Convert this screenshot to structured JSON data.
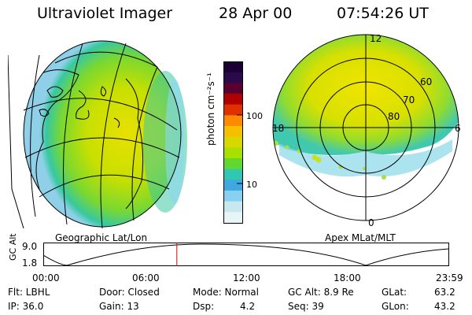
{
  "header": {
    "instrument": "Ultraviolet Imager",
    "date": "28 Apr 00",
    "time": "07:54:26 UT"
  },
  "left_panel": {
    "caption": "Geographic Lat/Lon"
  },
  "colorbar": {
    "unit_label": "photon cm⁻²s⁻¹",
    "ticks": [
      "100",
      "10"
    ],
    "colors": [
      "#1a0033",
      "#2a0a4a",
      "#5a0030",
      "#b00000",
      "#e03000",
      "#ff8a00",
      "#f5c000",
      "#d8d800",
      "#a8e000",
      "#60d830",
      "#30c8b0",
      "#40a8e0",
      "#88d0f0",
      "#c8e8f0",
      "#e8f4f6"
    ]
  },
  "right_panel": {
    "caption": "Apex MLat/MLT",
    "mlt_labels": {
      "top": "12",
      "left": "18",
      "right": "6",
      "bottom": "0"
    },
    "lat_labels": [
      "60",
      "70",
      "80"
    ]
  },
  "altitude_plot": {
    "ylabel": "GC Alt",
    "yticks": [
      "9.0",
      "1.8"
    ],
    "xticks": [
      "00:00",
      "06:00",
      "12:00",
      "18:00",
      "23:59"
    ],
    "marker_time_fraction": 0.329
  },
  "status": {
    "row1": {
      "flt": "Flt: LBHL",
      "door": "Door: Closed",
      "mode": "Mode: Normal",
      "gcalt": "GC Alt: 8.9 Re",
      "glat_label": "GLat:",
      "glat_value": "63.2"
    },
    "row2": {
      "ip": "IP: 36.0",
      "gain": "Gain: 13",
      "dsp_label": "Dsp:",
      "dsp_value": "4.2",
      "seq": "Seq: 39",
      "glon_label": "GLon:",
      "glon_value": "43.2"
    }
  }
}
